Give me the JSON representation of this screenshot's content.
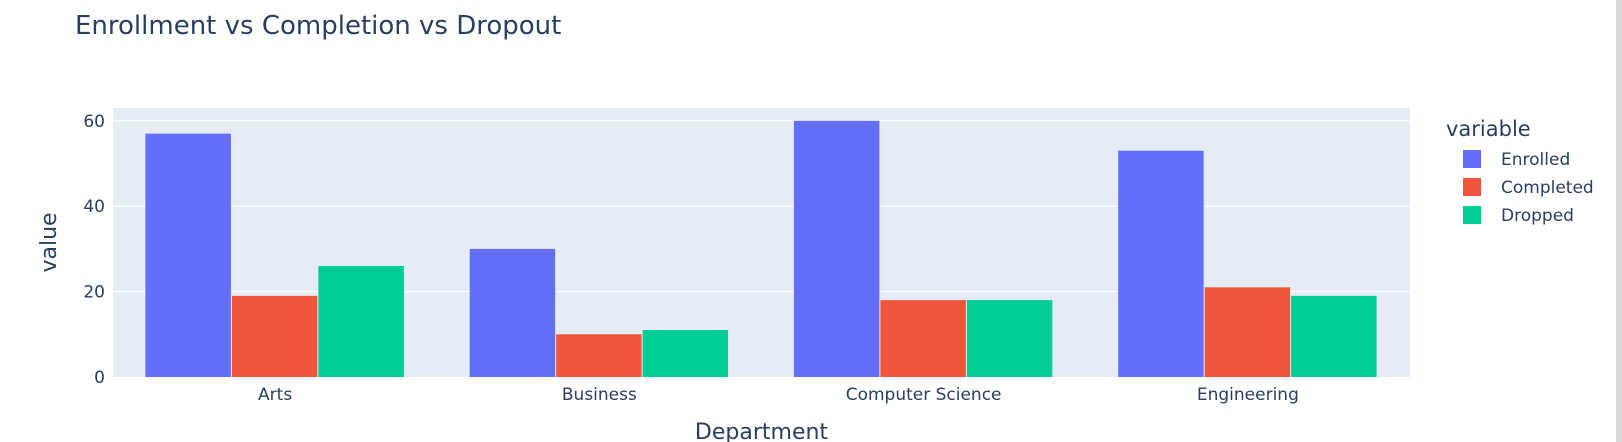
{
  "chart_data": {
    "type": "bar",
    "barmode": "group",
    "title": "Enrollment vs Completion vs Dropout",
    "xlabel": "Department",
    "ylabel": "value",
    "categories": [
      "Arts",
      "Business",
      "Computer Science",
      "Engineering"
    ],
    "series": [
      {
        "name": "Enrolled",
        "color": "#636efa",
        "values": [
          57,
          30,
          60,
          53
        ]
      },
      {
        "name": "Completed",
        "color": "#ef553b",
        "values": [
          19,
          10,
          18,
          21
        ]
      },
      {
        "name": "Dropped",
        "color": "#00cc96",
        "values": [
          26,
          11,
          18,
          19
        ]
      }
    ],
    "ylim": [
      0,
      63
    ],
    "yticks": [
      0,
      20,
      40,
      60
    ],
    "grid": true,
    "legend": {
      "title": "variable",
      "position": "right"
    },
    "colors": {
      "plot_background": "#e5ecf6",
      "grid": "#ffffff",
      "text": "#2a3f5f"
    }
  }
}
